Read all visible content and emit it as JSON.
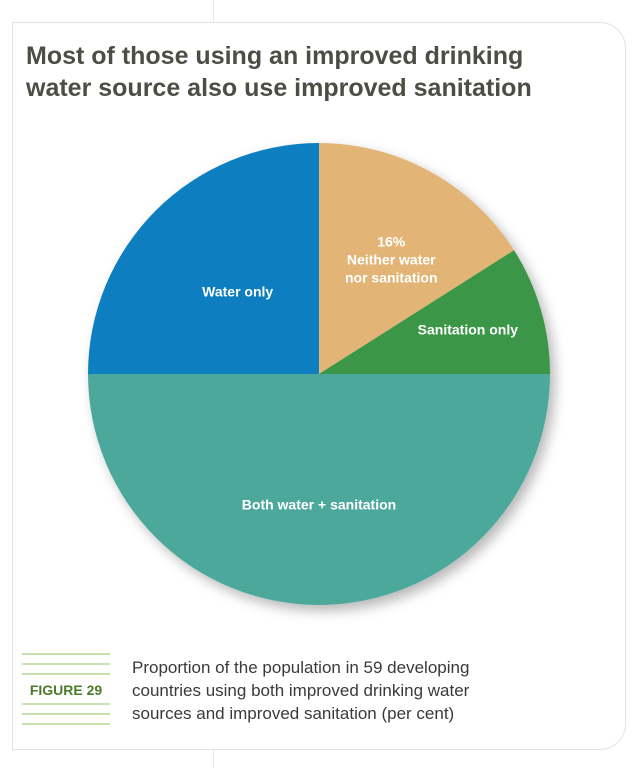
{
  "title_lines": [
    "Most of those using an improved drinking",
    "water source also use improved sanitation"
  ],
  "figure_label": "FIGURE 29",
  "caption_lines": [
    "Proportion of the population in 59 developing",
    "countries using both improved drinking water",
    "sources and improved sanitation (per cent)"
  ],
  "colors": {
    "both": "#4da89c",
    "water_only": "#0b7fc0",
    "neither": "#e2b577",
    "sanitation_only": "#3a9646",
    "title": "#4d4d45",
    "figure_label": "#4d7a2a",
    "rule_lines": "#a9cf7b"
  },
  "chart_data": {
    "type": "pie",
    "start_angle_deg": 90,
    "direction": "clockwise",
    "slices": [
      {
        "label_lines": [
          "Both water + sanitation"
        ],
        "value": 50,
        "value_label": "",
        "color": "#4da89c"
      },
      {
        "label_lines": [
          "Water only"
        ],
        "value": 25,
        "value_label": "",
        "color": "#0b7fc0"
      },
      {
        "label_lines": [
          "Neither water",
          "nor sanitation"
        ],
        "value": 16,
        "value_label": "16%",
        "color": "#e2b577"
      },
      {
        "label_lines": [
          "Sanitation only"
        ],
        "value": 9,
        "value_label": "",
        "color": "#3a9646"
      }
    ]
  }
}
